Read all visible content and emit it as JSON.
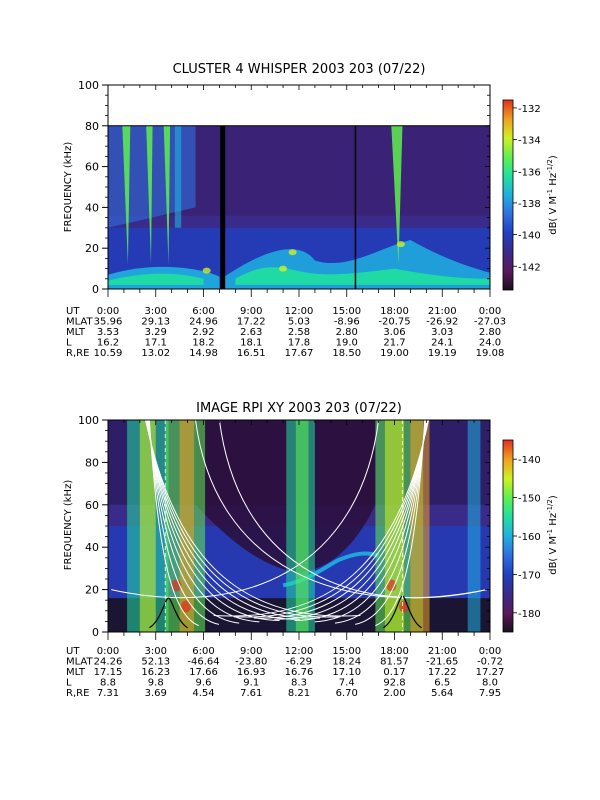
{
  "chart_data": [
    {
      "type": "heatmap",
      "title": "CLUSTER 4 WHISPER 2003 203 (07/22)",
      "ylabel": "FREQUENCY (kHz)",
      "ylim": [
        0,
        100
      ],
      "yticks": [
        "0",
        "20",
        "40",
        "60",
        "80",
        "100"
      ],
      "colorbar": {
        "label": "dB( V M⁻¹ Hz⁻¹ᐟ²)",
        "label_main": "dB( V M",
        "label_sup1": "-1",
        "label_mid": " Hz",
        "label_sup2": "-1/2",
        "label_end": ")",
        "range": [
          -143.5,
          -131.5
        ],
        "ticks": [
          "-132",
          "-134",
          "-136",
          "-138",
          "-140",
          "-142"
        ],
        "colors": [
          "#1a0f1e",
          "#5a1a5a",
          "#3a2a8a",
          "#2040c0",
          "#2f70e0",
          "#20b0e0",
          "#20e0a0",
          "#60f050",
          "#d0f020",
          "#f0a020",
          "#e03020"
        ]
      },
      "data_ceiling_khz": 80,
      "ephemeris": {
        "row_labels": [
          "UT",
          "MLAT",
          "MLT",
          "L",
          "R,RE"
        ],
        "columns": [
          [
            "0:00",
            "35.96",
            "3.53",
            "16.2",
            "10.59"
          ],
          [
            "3:00",
            "29.13",
            "3.29",
            "17.1",
            "13.02"
          ],
          [
            "6:00",
            "24.96",
            "2.92",
            "18.2",
            "14.98"
          ],
          [
            "9:00",
            "17.22",
            "2.63",
            "18.1",
            "16.51"
          ],
          [
            "12:00",
            "5.03",
            "2.58",
            "17.8",
            "17.67"
          ],
          [
            "15:00",
            "-8.96",
            "2.80",
            "19.0",
            "18.50"
          ],
          [
            "18:00",
            "-20.75",
            "3.06",
            "21.7",
            "19.00"
          ],
          [
            "21:00",
            "-26.92",
            "3.03",
            "24.1",
            "19.19"
          ],
          [
            "0:00",
            "-27.03",
            "2.80",
            "24.0",
            "19.08"
          ]
        ]
      }
    },
    {
      "type": "heatmap",
      "title": "IMAGE RPI XY 2003 203 (07/22)",
      "ylabel": "FREQUENCY (kHz)",
      "ylim": [
        0,
        100
      ],
      "yticks": [
        "0",
        "20",
        "40",
        "60",
        "80",
        "100"
      ],
      "colorbar": {
        "label_main": "dB( V M",
        "label_sup1": "-1",
        "label_mid": " Hz",
        "label_sup2": "-1/2",
        "label_end": ")",
        "range": [
          -185,
          -135
        ],
        "ticks": [
          "-140",
          "-150",
          "-160",
          "-170",
          "-180"
        ],
        "colors": [
          "#1a0f1e",
          "#5a1a5a",
          "#3a2a8a",
          "#2040c0",
          "#2f70e0",
          "#20b0e0",
          "#20e0a0",
          "#60f050",
          "#d0f020",
          "#f0a020",
          "#e03020"
        ]
      },
      "ephemeris": {
        "row_labels": [
          "UT",
          "MLAT",
          "MLT",
          "L",
          "R,RE"
        ],
        "columns": [
          [
            "0:00",
            "24.26",
            "17.15",
            "8.8",
            "7.31"
          ],
          [
            "3:00",
            "52.13",
            "16.23",
            "9.8",
            "3.69"
          ],
          [
            "6:00",
            "-46.64",
            "17.66",
            "9.6",
            "4.54"
          ],
          [
            "9:00",
            "-23.80",
            "16.93",
            "9.1",
            "7.61"
          ],
          [
            "12:00",
            "-6.29",
            "16.76",
            "8.3",
            "8.21"
          ],
          [
            "15:00",
            "18.24",
            "17.10",
            "7.4",
            "6.70"
          ],
          [
            "18:00",
            "81.57",
            "0.17",
            "92.8",
            "2.00"
          ],
          [
            "21:00",
            "-21.65",
            "17.22",
            "6.5",
            "5.64"
          ],
          [
            "0:00",
            "-0.72",
            "17.27",
            "8.0",
            "7.95"
          ]
        ]
      }
    }
  ]
}
